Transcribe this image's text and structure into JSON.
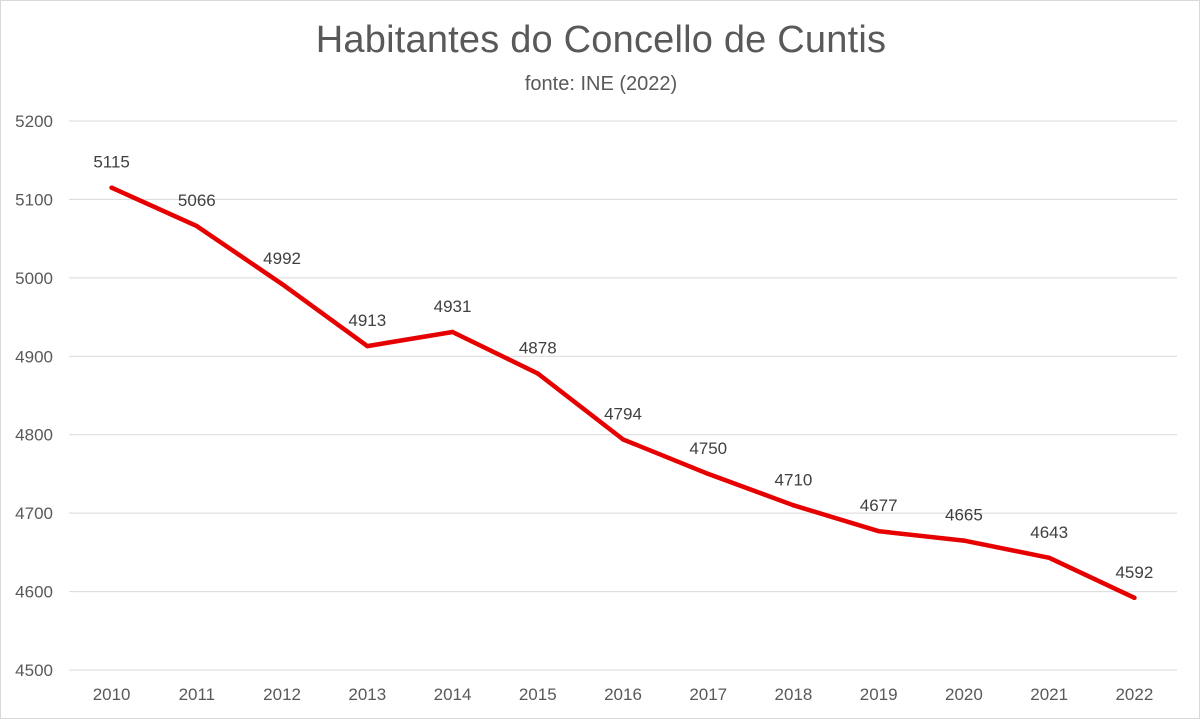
{
  "chart_data": {
    "type": "line",
    "title": "Habitantes do Concello de Cuntis",
    "subtitle": "fonte: INE (2022)",
    "xlabel": "",
    "ylabel": "",
    "categories": [
      "2010",
      "2011",
      "2012",
      "2013",
      "2014",
      "2015",
      "2016",
      "2017",
      "2018",
      "2019",
      "2020",
      "2021",
      "2022"
    ],
    "series": [
      {
        "values": [
          5115,
          5066,
          4992,
          4913,
          4931,
          4878,
          4794,
          4750,
          4710,
          4677,
          4665,
          4643,
          4592
        ],
        "color": "#e60000"
      }
    ],
    "ylim": [
      4500,
      5200
    ],
    "yticks": [
      4500,
      4600,
      4700,
      4800,
      4900,
      5000,
      5100,
      5200
    ],
    "grid": true,
    "legend": "none",
    "data_labels": true
  },
  "colors": {
    "gridline": "#d9d9d9",
    "axis_text": "#595959",
    "title_text": "#595959",
    "data_label_text": "#404040"
  }
}
